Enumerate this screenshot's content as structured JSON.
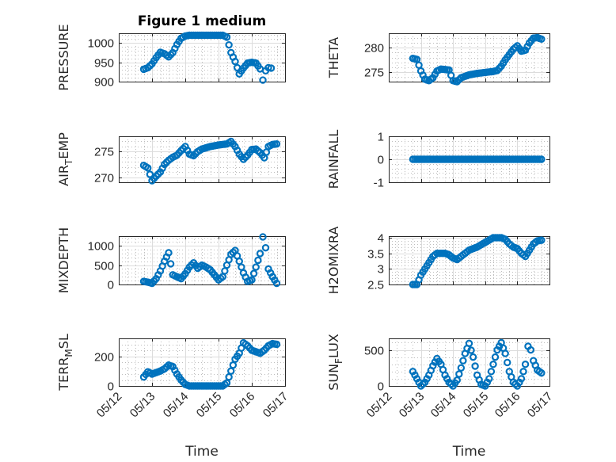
{
  "chart_data": [
    {
      "type": "scatter",
      "title": "Figure 1 medium",
      "ylabel": "PRESSURE",
      "xlabel": "",
      "ylim": [
        900,
        1025
      ],
      "yticks": [
        900,
        950,
        1000
      ],
      "xlim": [
        "05/12",
        "05/17"
      ],
      "xticks": [
        "05/12",
        "05/13",
        "05/14",
        "05/15",
        "05/16",
        "05/17"
      ],
      "color": "#0072BD",
      "points": [
        [
          "05/12 18:00",
          932
        ],
        [
          "05/12 21:00",
          936
        ],
        [
          "05/13 00:00",
          946
        ],
        [
          "05/13 03:00",
          962
        ],
        [
          "05/13 06:00",
          976
        ],
        [
          "05/13 09:00",
          972
        ],
        [
          "05/13 12:00",
          964
        ],
        [
          "05/13 15:00",
          975
        ],
        [
          "05/13 18:00",
          996
        ],
        [
          "05/13 21:00",
          1012
        ],
        [
          "05/14 00:00",
          1018
        ],
        [
          "05/14 03:00",
          1020
        ],
        [
          "05/14 06:00",
          1020
        ],
        [
          "05/14 12:00",
          1020
        ],
        [
          "05/14 18:00",
          1020
        ],
        [
          "05/15 00:00",
          1020
        ],
        [
          "05/15 03:00",
          1020
        ],
        [
          "05/15 06:00",
          1015
        ],
        [
          "05/15 09:00",
          975
        ],
        [
          "05/15 12:00",
          952
        ],
        [
          "05/15 15:00",
          920
        ],
        [
          "05/15 18:00",
          935
        ],
        [
          "05/15 21:00",
          948
        ],
        [
          "05/16 00:00",
          950
        ],
        [
          "05/16 03:00",
          948
        ],
        [
          "05/16 06:00",
          933
        ],
        [
          "05/16 08:00",
          904
        ],
        [
          "05/16 10:00",
          928
        ],
        [
          "05/16 12:00",
          936
        ],
        [
          "05/16 14:00",
          935
        ]
      ]
    },
    {
      "type": "scatter",
      "ylabel": "THETA",
      "xlabel": "",
      "ylim": [
        273,
        283
      ],
      "yticks": [
        275,
        280
      ],
      "xlim": [
        "05/12",
        "05/17"
      ],
      "xticks": [
        "05/12",
        "05/13",
        "05/14",
        "05/15",
        "05/16",
        "05/17"
      ],
      "color": "#0072BD",
      "points": [
        [
          "05/12 18:00",
          277.8
        ],
        [
          "05/12 21:00",
          277.6
        ],
        [
          "05/13 00:00",
          275.2
        ],
        [
          "05/13 03:00",
          273.5
        ],
        [
          "05/13 06:00",
          273.2
        ],
        [
          "05/13 09:00",
          273.8
        ],
        [
          "05/13 12:00",
          275.2
        ],
        [
          "05/13 15:00",
          275.6
        ],
        [
          "05/13 18:00",
          275.5
        ],
        [
          "05/13 21:00",
          275.4
        ],
        [
          "05/14 00:00",
          273.2
        ],
        [
          "05/14 03:00",
          273.0
        ],
        [
          "05/14 06:00",
          273.8
        ],
        [
          "05/14 09:00",
          274.1
        ],
        [
          "05/14 12:00",
          274.4
        ],
        [
          "05/14 18:00",
          274.7
        ],
        [
          "05/15 00:00",
          274.9
        ],
        [
          "05/15 06:00",
          275.1
        ],
        [
          "05/15 09:00",
          275.3
        ],
        [
          "05/15 12:00",
          276.2
        ],
        [
          "05/15 15:00",
          277.5
        ],
        [
          "05/15 18:00",
          278.6
        ],
        [
          "05/15 21:00",
          279.7
        ],
        [
          "05/16 00:00",
          280.4
        ],
        [
          "05/16 03:00",
          279.3
        ],
        [
          "05/16 06:00",
          279.5
        ],
        [
          "05/16 09:00",
          281.0
        ],
        [
          "05/16 12:00",
          282.0
        ],
        [
          "05/16 15:00",
          282.1
        ],
        [
          "05/16 18:00",
          281.8
        ]
      ]
    },
    {
      "type": "scatter",
      "ylabel": "AIR_TEMP",
      "xlabel": "",
      "ylim": [
        269,
        278
      ],
      "yticks": [
        270,
        275
      ],
      "xlim": [
        "05/12",
        "05/17"
      ],
      "xticks": [
        "05/12",
        "05/13",
        "05/14",
        "05/15",
        "05/16",
        "05/17"
      ],
      "color": "#0072BD",
      "points": [
        [
          "05/12 18:00",
          272.3
        ],
        [
          "05/12 21:00",
          271.8
        ],
        [
          "05/13 00:00",
          269.3
        ],
        [
          "05/13 03:00",
          270.2
        ],
        [
          "05/13 06:00",
          271.0
        ],
        [
          "05/13 09:00",
          272.5
        ],
        [
          "05/13 12:00",
          273.3
        ],
        [
          "05/13 15:00",
          273.9
        ],
        [
          "05/13 18:00",
          274.3
        ],
        [
          "05/13 21:00",
          275.2
        ],
        [
          "05/14 00:00",
          276.0
        ],
        [
          "05/14 03:00",
          274.5
        ],
        [
          "05/14 06:00",
          274.2
        ],
        [
          "05/14 09:00",
          275.0
        ],
        [
          "05/14 12:00",
          275.5
        ],
        [
          "05/14 18:00",
          276.0
        ],
        [
          "05/15 00:00",
          276.3
        ],
        [
          "05/15 06:00",
          276.5
        ],
        [
          "05/15 09:00",
          277.0
        ],
        [
          "05/15 12:00",
          276.0
        ],
        [
          "05/15 15:00",
          274.5
        ],
        [
          "05/15 18:00",
          273.5
        ],
        [
          "05/15 21:00",
          274.3
        ],
        [
          "05/16 00:00",
          275.4
        ],
        [
          "05/16 03:00",
          275.5
        ],
        [
          "05/16 06:00",
          274.8
        ],
        [
          "05/16 09:00",
          273.8
        ],
        [
          "05/16 12:00",
          276.0
        ],
        [
          "05/16 15:00",
          276.4
        ],
        [
          "05/16 18:00",
          276.5
        ]
      ]
    },
    {
      "type": "scatter",
      "ylabel": "RAINFALL",
      "xlabel": "",
      "ylim": [
        -1,
        1
      ],
      "yticks": [
        -1,
        0,
        1
      ],
      "xlim": [
        "05/12",
        "05/17"
      ],
      "xticks": [
        "05/12",
        "05/13",
        "05/14",
        "05/15",
        "05/16",
        "05/17"
      ],
      "color": "#0072BD",
      "points": [
        [
          "05/12 18:00",
          0
        ],
        [
          "05/13 00:00",
          0
        ],
        [
          "05/13 06:00",
          0
        ],
        [
          "05/13 12:00",
          0
        ],
        [
          "05/13 18:00",
          0
        ],
        [
          "05/14 00:00",
          0
        ],
        [
          "05/14 06:00",
          0
        ],
        [
          "05/14 12:00",
          0
        ],
        [
          "05/14 18:00",
          0
        ],
        [
          "05/15 00:00",
          0
        ],
        [
          "05/15 06:00",
          0
        ],
        [
          "05/15 12:00",
          0
        ],
        [
          "05/15 18:00",
          0
        ],
        [
          "05/16 00:00",
          0
        ],
        [
          "05/16 06:00",
          0
        ],
        [
          "05/16 12:00",
          0
        ],
        [
          "05/16 18:00",
          0
        ]
      ]
    },
    {
      "type": "scatter",
      "ylabel": "MIXDEPTH",
      "xlabel": "",
      "ylim": [
        0,
        1250
      ],
      "yticks": [
        0,
        500,
        1000
      ],
      "xlim": [
        "05/12",
        "05/17"
      ],
      "xticks": [
        "05/12",
        "05/13",
        "05/14",
        "05/15",
        "05/16",
        "05/17"
      ],
      "color": "#0072BD",
      "points": [
        [
          "05/12 18:00",
          80
        ],
        [
          "05/12 21:00",
          60
        ],
        [
          "05/13 00:00",
          30
        ],
        [
          "05/13 03:00",
          150
        ],
        [
          "05/13 06:00",
          350
        ],
        [
          "05/13 09:00",
          600
        ],
        [
          "05/13 12:00",
          820
        ],
        [
          "05/13 15:00",
          250
        ],
        [
          "05/13 18:00",
          200
        ],
        [
          "05/13 21:00",
          150
        ],
        [
          "05/14 00:00",
          280
        ],
        [
          "05/14 03:00",
          450
        ],
        [
          "05/14 06:00",
          560
        ],
        [
          "05/14 09:00",
          420
        ],
        [
          "05/14 12:00",
          500
        ],
        [
          "05/14 15:00",
          450
        ],
        [
          "05/14 18:00",
          380
        ],
        [
          "05/14 21:00",
          250
        ],
        [
          "05/15 00:00",
          120
        ],
        [
          "05/15 03:00",
          200
        ],
        [
          "05/15 06:00",
          500
        ],
        [
          "05/15 09:00",
          780
        ],
        [
          "05/15 12:00",
          880
        ],
        [
          "05/15 15:00",
          600
        ],
        [
          "05/15 18:00",
          300
        ],
        [
          "05/15 21:00",
          80
        ],
        [
          "05/16 00:00",
          120
        ],
        [
          "05/16 03:00",
          450
        ],
        [
          "05/16 06:00",
          800
        ],
        [
          "05/16 08:00",
          1230
        ],
        [
          "05/16 10:00",
          950
        ],
        [
          "05/16 12:00",
          400
        ],
        [
          "05/16 15:00",
          200
        ],
        [
          "05/16 18:00",
          30
        ]
      ]
    },
    {
      "type": "scatter",
      "ylabel": "H2OMIXRA",
      "xlabel": "",
      "ylim": [
        2.5,
        4.05
      ],
      "yticks": [
        2.5,
        3,
        3.5,
        4
      ],
      "xlim": [
        "05/12",
        "05/17"
      ],
      "xticks": [
        "05/12",
        "05/13",
        "05/14",
        "05/15",
        "05/16",
        "05/17"
      ],
      "color": "#0072BD",
      "points": [
        [
          "05/12 18:00",
          2.5
        ],
        [
          "05/12 21:00",
          2.5
        ],
        [
          "05/13 00:00",
          2.8
        ],
        [
          "05/13 03:00",
          3.0
        ],
        [
          "05/13 06:00",
          3.2
        ],
        [
          "05/13 09:00",
          3.4
        ],
        [
          "05/13 12:00",
          3.5
        ],
        [
          "05/13 15:00",
          3.5
        ],
        [
          "05/13 18:00",
          3.5
        ],
        [
          "05/13 21:00",
          3.45
        ],
        [
          "05/14 00:00",
          3.35
        ],
        [
          "05/14 03:00",
          3.3
        ],
        [
          "05/14 06:00",
          3.4
        ],
        [
          "05/14 09:00",
          3.5
        ],
        [
          "05/14 12:00",
          3.6
        ],
        [
          "05/14 18:00",
          3.7
        ],
        [
          "05/15 00:00",
          3.85
        ],
        [
          "05/15 06:00",
          4.0
        ],
        [
          "05/15 12:00",
          4.0
        ],
        [
          "05/15 15:00",
          3.95
        ],
        [
          "05/15 18:00",
          3.8
        ],
        [
          "05/15 21:00",
          3.7
        ],
        [
          "05/16 00:00",
          3.65
        ],
        [
          "05/16 03:00",
          3.5
        ],
        [
          "05/16 06:00",
          3.4
        ],
        [
          "05/16 09:00",
          3.6
        ],
        [
          "05/16 12:00",
          3.8
        ],
        [
          "05/16 15:00",
          3.9
        ],
        [
          "05/16 18:00",
          3.92
        ]
      ]
    },
    {
      "type": "scatter",
      "ylabel": "TERR_MSL",
      "xlabel": "Time",
      "ylim": [
        0,
        320
      ],
      "yticks": [
        0,
        200
      ],
      "xlim": [
        "05/12",
        "05/17"
      ],
      "xticks": [
        "05/12",
        "05/13",
        "05/14",
        "05/15",
        "05/16",
        "05/17"
      ],
      "color": "#0072BD",
      "points": [
        [
          "05/12 18:00",
          60
        ],
        [
          "05/12 21:00",
          95
        ],
        [
          "05/13 00:00",
          80
        ],
        [
          "05/13 03:00",
          90
        ],
        [
          "05/13 06:00",
          100
        ],
        [
          "05/13 09:00",
          115
        ],
        [
          "05/13 12:00",
          140
        ],
        [
          "05/13 15:00",
          130
        ],
        [
          "05/13 18:00",
          80
        ],
        [
          "05/13 21:00",
          40
        ],
        [
          "05/14 00:00",
          10
        ],
        [
          "05/14 03:00",
          0
        ],
        [
          "05/14 09:00",
          0
        ],
        [
          "05/14 15:00",
          0
        ],
        [
          "05/14 21:00",
          0
        ],
        [
          "05/15 03:00",
          0
        ],
        [
          "05/15 06:00",
          20
        ],
        [
          "05/15 09:00",
          100
        ],
        [
          "05/15 12:00",
          180
        ],
        [
          "05/15 15:00",
          220
        ],
        [
          "05/15 18:00",
          290
        ],
        [
          "05/15 21:00",
          270
        ],
        [
          "05/16 00:00",
          240
        ],
        [
          "05/16 03:00",
          230
        ],
        [
          "05/16 06:00",
          220
        ],
        [
          "05/16 09:00",
          240
        ],
        [
          "05/16 12:00",
          270
        ],
        [
          "05/16 15:00",
          285
        ],
        [
          "05/16 18:00",
          280
        ]
      ]
    },
    {
      "type": "scatter",
      "ylabel": "SUN_FLUX",
      "xlabel": "Time",
      "ylim": [
        0,
        660
      ],
      "yticks": [
        0,
        500
      ],
      "xlim": [
        "05/12",
        "05/17"
      ],
      "xticks": [
        "05/12",
        "05/13",
        "05/14",
        "05/15",
        "05/16",
        "05/17"
      ],
      "color": "#0072BD",
      "points": [
        [
          "05/12 18:00",
          200
        ],
        [
          "05/12 21:00",
          100
        ],
        [
          "05/13 00:00",
          0
        ],
        [
          "05/13 03:00",
          50
        ],
        [
          "05/13 06:00",
          150
        ],
        [
          "05/13 09:00",
          280
        ],
        [
          "05/13 12:00",
          380
        ],
        [
          "05/13 15:00",
          300
        ],
        [
          "05/13 18:00",
          150
        ],
        [
          "05/13 21:00",
          50
        ],
        [
          "05/14 00:00",
          0
        ],
        [
          "05/14 03:00",
          80
        ],
        [
          "05/14 06:00",
          250
        ],
        [
          "05/14 09:00",
          450
        ],
        [
          "05/14 12:00",
          590
        ],
        [
          "05/14 15:00",
          400
        ],
        [
          "05/14 18:00",
          150
        ],
        [
          "05/14 21:00",
          20
        ],
        [
          "05/15 00:00",
          0
        ],
        [
          "05/15 03:00",
          100
        ],
        [
          "05/15 06:00",
          300
        ],
        [
          "05/15 09:00",
          500
        ],
        [
          "05/15 12:00",
          600
        ],
        [
          "05/15 15:00",
          450
        ],
        [
          "05/15 18:00",
          200
        ],
        [
          "05/15 21:00",
          50
        ],
        [
          "05/16 00:00",
          0
        ],
        [
          "05/16 03:00",
          100
        ],
        [
          "05/16 06:00",
          300
        ],
        [
          "05/16 08:00",
          550
        ],
        [
          "05/16 10:00",
          500
        ],
        [
          "05/16 12:00",
          350
        ],
        [
          "05/16 15:00",
          220
        ],
        [
          "05/16 18:00",
          180
        ]
      ]
    }
  ]
}
